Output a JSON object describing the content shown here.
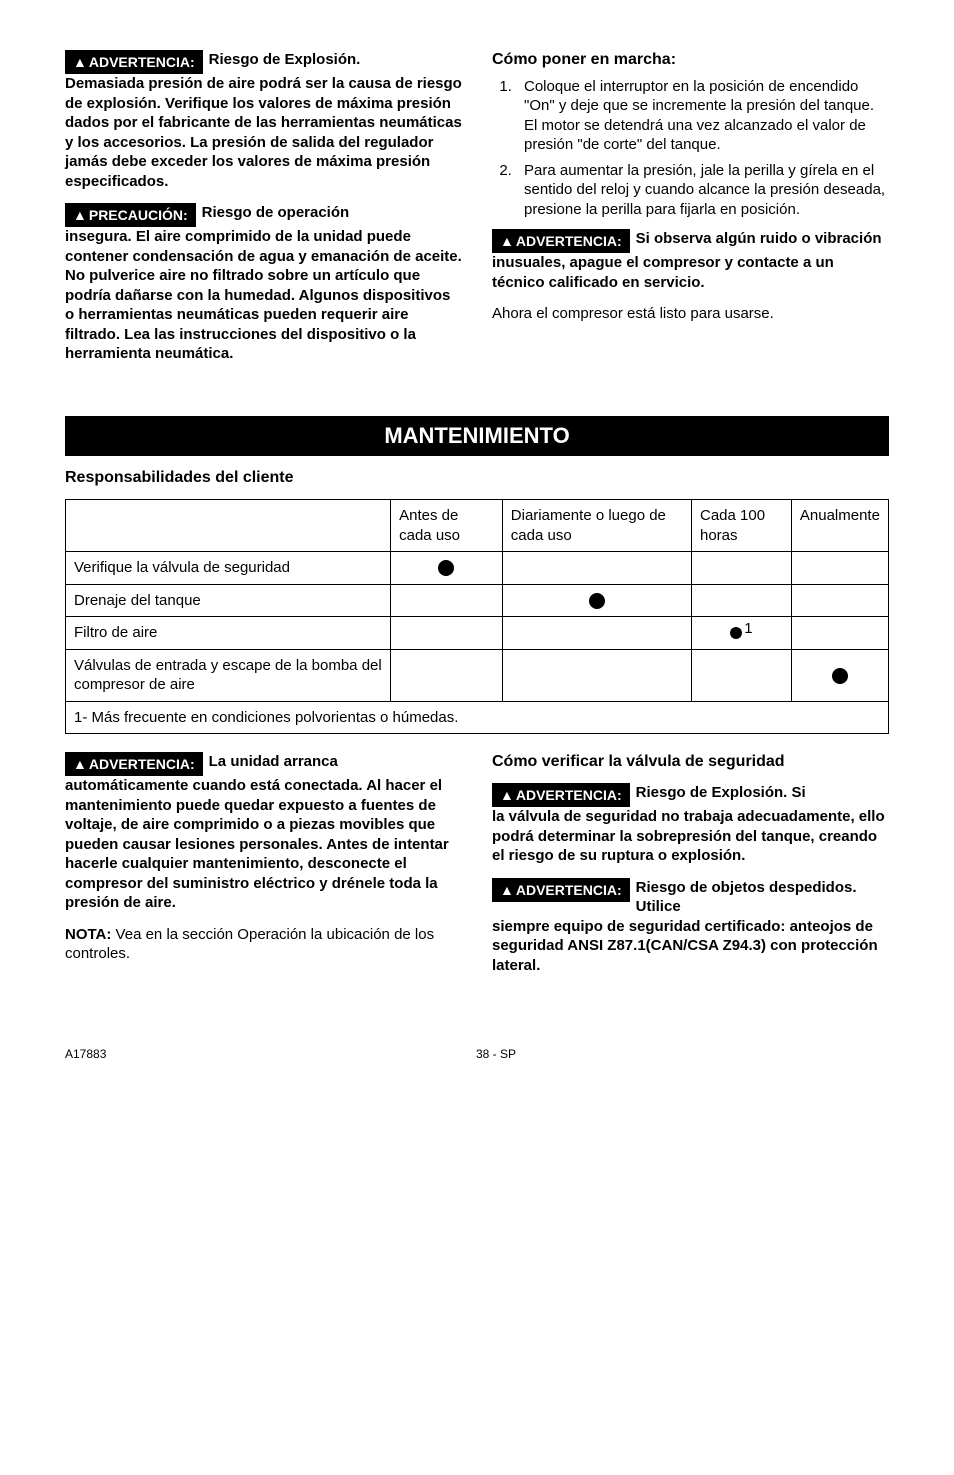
{
  "badges": {
    "advertencia": "ADVERTENCIA:",
    "precaucion": "PRECAUCIÓN:",
    "triangle": "▲"
  },
  "top": {
    "left": {
      "warn1_lead": "Riesgo de Explosión.",
      "warn1_body": "Demasiada presión de aire podrá ser la causa de riesgo de explosión. Verifique los valores de máxima presión dados por el fabricante de las herramientas neumáticas y los accesorios. La presión de salida del regulador jamás debe exceder los valores de máxima presión especificados.",
      "warn2_lead": "Riesgo de operación",
      "warn2_body": "insegura. El aire comprimido de la unidad puede contener condensación de agua y emanación de aceite. No pulverice aire no filtrado sobre un artículo que podría dañarse con la humedad. Algunos dispositivos o herramientas neumáticas pueden requerir aire filtrado. Lea las instrucciones del dispositivo o la herramienta neumática."
    },
    "right": {
      "heading": "Cómo poner en marcha:",
      "step1": "Coloque el interruptor en la posición de encendido \"On\" y deje que se incremente la presión del tanque. El motor se detendrá una vez alcanzado el valor de presión \"de corte\" del tanque.",
      "step2": "Para aumentar la presión, jale la perilla y gírela en el sentido del reloj y cuando alcance la presión deseada, presione la perilla para fijarla en posición.",
      "warn_lead": "Si observa algún ruido o vibración",
      "warn_body": "inusuales, apague el compresor y contacte a un técnico calificado en servicio.",
      "closing": "Ahora el compresor está listo para usarse."
    }
  },
  "maintenance": {
    "title": "MANTENIMIENTO",
    "subtitle": "Responsabilidades del cliente",
    "headers": {
      "col1": "Antes de cada uso",
      "col2": "Diariamente o luego de cada uso",
      "col3": "Cada 100 horas",
      "col4": "Anualmente"
    },
    "rows": {
      "r1": "Verifique la válvula de seguridad",
      "r2": "Drenaje del tanque",
      "r3": "Filtro de aire",
      "r4": "Válvulas de entrada y escape de la bomba del compresor de aire"
    },
    "footnote": "1- Más frecuente en condiciones polvorientas o húmedas.",
    "note_sup": "1"
  },
  "bottom": {
    "left": {
      "warn_lead": "La unidad arranca",
      "warn_body": "automáticamente cuando está conectada.  Al hacer el mantenimiento puede quedar expuesto a fuentes de voltaje, de aire comprimido o a piezas movibles que pueden causar lesiones personales.  Antes de intentar hacerle cualquier mantenimiento, desconecte el compresor del suministro eléctrico y drénele toda la presión de aire.",
      "nota_label": "NOTA:",
      "nota_text": " Vea en la sección Operación la ubicación de los controles."
    },
    "right": {
      "heading": "Cómo verificar la válvula de seguridad",
      "warn1_lead": "Riesgo de Explosión. Si",
      "warn1_body": "la válvula de seguridad no trabaja adecuadamente, ello podrá determinar la sobrepresión del tanque, creando el riesgo de su ruptura o explosión.",
      "warn2_lead": "Riesgo de objetos despedidos. Utilice",
      "warn2_body": "siempre equipo de seguridad certificado: anteojos de seguridad ANSI Z87.1(CAN/CSA Z94.3) con protección lateral."
    }
  },
  "footer": {
    "left": "A17883",
    "center": "38 - SP"
  }
}
